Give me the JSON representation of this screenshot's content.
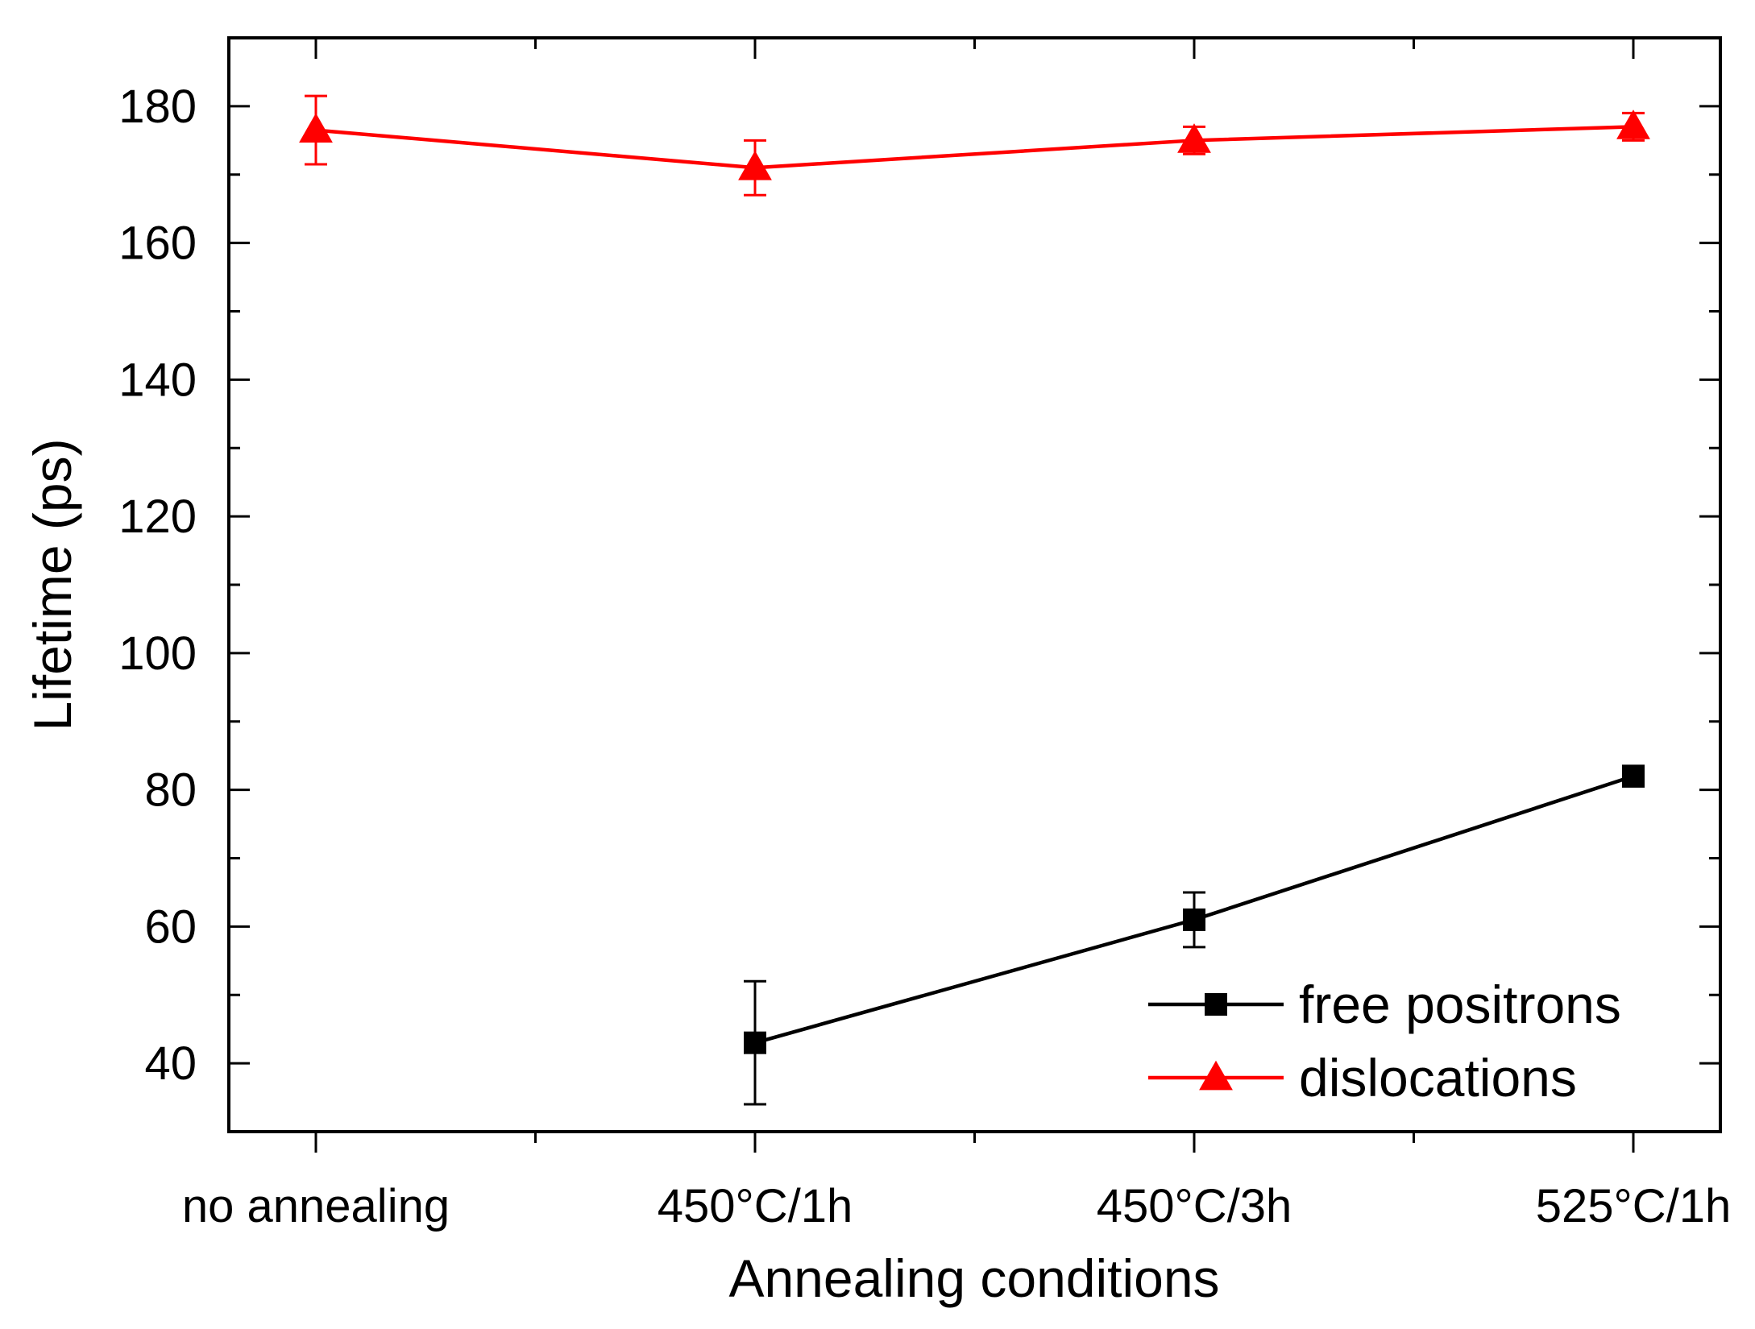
{
  "chart_data": {
    "type": "line",
    "categories": [
      "no annealing",
      "450°C/1h",
      "450°C/3h",
      "525°C/1h"
    ],
    "xlabel": "Annealing conditions",
    "ylabel": "Lifetime (ps)",
    "ylim": [
      30,
      190
    ],
    "yticks": [
      40,
      60,
      80,
      100,
      120,
      140,
      160,
      180
    ],
    "grid": false,
    "legend_position": "bottom-right",
    "series": [
      {
        "name": "free positrons",
        "color": "#000000",
        "marker": "square",
        "values": [
          null,
          43,
          61,
          82
        ],
        "errors": [
          null,
          9,
          4,
          1.5
        ]
      },
      {
        "name": "dislocations",
        "color": "#ff0000",
        "marker": "triangle",
        "values": [
          176.5,
          171,
          175,
          177
        ],
        "errors": [
          5,
          4,
          2,
          2
        ]
      }
    ]
  }
}
